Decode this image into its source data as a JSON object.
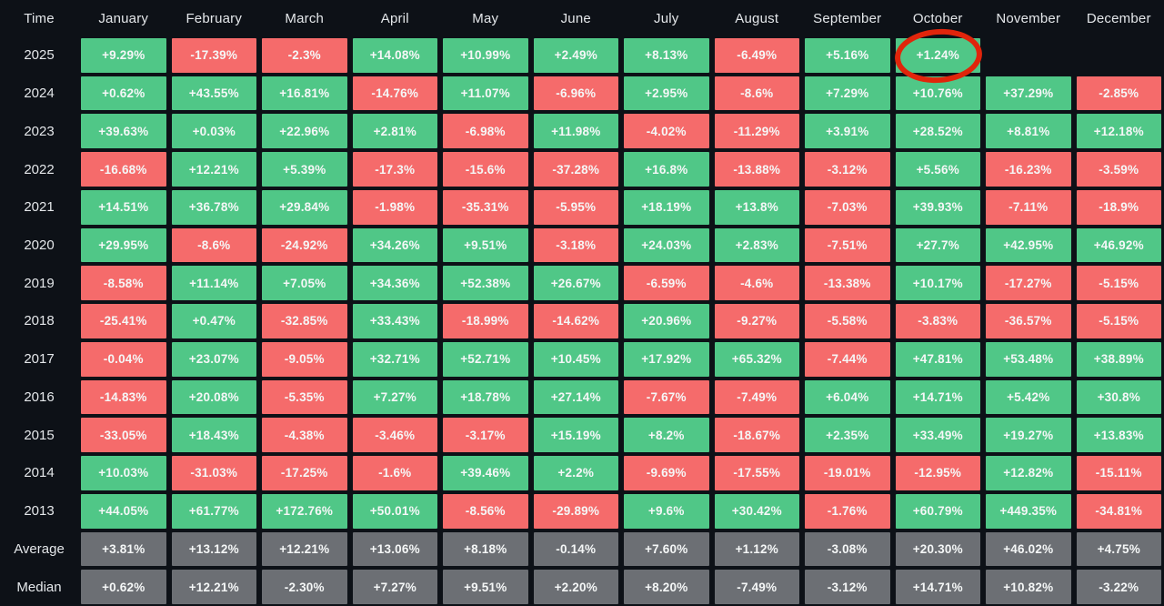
{
  "chart_data": {
    "type": "heatmap",
    "title": "Monthly returns heatmap by year",
    "legend_position": "none",
    "grid": false,
    "columns": [
      "Time",
      "January",
      "February",
      "March",
      "April",
      "May",
      "June",
      "July",
      "August",
      "September",
      "October",
      "November",
      "December"
    ],
    "rows": [
      {
        "label": "2025",
        "kind": "year",
        "values": [
          "+9.29%",
          "-17.39%",
          "-2.3%",
          "+14.08%",
          "+10.99%",
          "+2.49%",
          "+8.13%",
          "-6.49%",
          "+5.16%",
          "+1.24%",
          null,
          null
        ]
      },
      {
        "label": "2024",
        "kind": "year",
        "values": [
          "+0.62%",
          "+43.55%",
          "+16.81%",
          "-14.76%",
          "+11.07%",
          "-6.96%",
          "+2.95%",
          "-8.6%",
          "+7.29%",
          "+10.76%",
          "+37.29%",
          "-2.85%"
        ]
      },
      {
        "label": "2023",
        "kind": "year",
        "values": [
          "+39.63%",
          "+0.03%",
          "+22.96%",
          "+2.81%",
          "-6.98%",
          "+11.98%",
          "-4.02%",
          "-11.29%",
          "+3.91%",
          "+28.52%",
          "+8.81%",
          "+12.18%"
        ]
      },
      {
        "label": "2022",
        "kind": "year",
        "values": [
          "-16.68%",
          "+12.21%",
          "+5.39%",
          "-17.3%",
          "-15.6%",
          "-37.28%",
          "+16.8%",
          "-13.88%",
          "-3.12%",
          "+5.56%",
          "-16.23%",
          "-3.59%"
        ]
      },
      {
        "label": "2021",
        "kind": "year",
        "values": [
          "+14.51%",
          "+36.78%",
          "+29.84%",
          "-1.98%",
          "-35.31%",
          "-5.95%",
          "+18.19%",
          "+13.8%",
          "-7.03%",
          "+39.93%",
          "-7.11%",
          "-18.9%"
        ]
      },
      {
        "label": "2020",
        "kind": "year",
        "values": [
          "+29.95%",
          "-8.6%",
          "-24.92%",
          "+34.26%",
          "+9.51%",
          "-3.18%",
          "+24.03%",
          "+2.83%",
          "-7.51%",
          "+27.7%",
          "+42.95%",
          "+46.92%"
        ]
      },
      {
        "label": "2019",
        "kind": "year",
        "values": [
          "-8.58%",
          "+11.14%",
          "+7.05%",
          "+34.36%",
          "+52.38%",
          "+26.67%",
          "-6.59%",
          "-4.6%",
          "-13.38%",
          "+10.17%",
          "-17.27%",
          "-5.15%"
        ]
      },
      {
        "label": "2018",
        "kind": "year",
        "values": [
          "-25.41%",
          "+0.47%",
          "-32.85%",
          "+33.43%",
          "-18.99%",
          "-14.62%",
          "+20.96%",
          "-9.27%",
          "-5.58%",
          "-3.83%",
          "-36.57%",
          "-5.15%"
        ]
      },
      {
        "label": "2017",
        "kind": "year",
        "values": [
          "-0.04%",
          "+23.07%",
          "-9.05%",
          "+32.71%",
          "+52.71%",
          "+10.45%",
          "+17.92%",
          "+65.32%",
          "-7.44%",
          "+47.81%",
          "+53.48%",
          "+38.89%"
        ]
      },
      {
        "label": "2016",
        "kind": "year",
        "values": [
          "-14.83%",
          "+20.08%",
          "-5.35%",
          "+7.27%",
          "+18.78%",
          "+27.14%",
          "-7.67%",
          "-7.49%",
          "+6.04%",
          "+14.71%",
          "+5.42%",
          "+30.8%"
        ]
      },
      {
        "label": "2015",
        "kind": "year",
        "values": [
          "-33.05%",
          "+18.43%",
          "-4.38%",
          "-3.46%",
          "-3.17%",
          "+15.19%",
          "+8.2%",
          "-18.67%",
          "+2.35%",
          "+33.49%",
          "+19.27%",
          "+13.83%"
        ]
      },
      {
        "label": "2014",
        "kind": "year",
        "values": [
          "+10.03%",
          "-31.03%",
          "-17.25%",
          "-1.6%",
          "+39.46%",
          "+2.2%",
          "-9.69%",
          "-17.55%",
          "-19.01%",
          "-12.95%",
          "+12.82%",
          "-15.11%"
        ]
      },
      {
        "label": "2013",
        "kind": "year",
        "values": [
          "+44.05%",
          "+61.77%",
          "+172.76%",
          "+50.01%",
          "-8.56%",
          "-29.89%",
          "+9.6%",
          "+30.42%",
          "-1.76%",
          "+60.79%",
          "+449.35%",
          "-34.81%"
        ]
      },
      {
        "label": "Average",
        "kind": "summary",
        "values": [
          "+3.81%",
          "+13.12%",
          "+12.21%",
          "+13.06%",
          "+8.18%",
          "-0.14%",
          "+7.60%",
          "+1.12%",
          "-3.08%",
          "+20.30%",
          "+46.02%",
          "+4.75%"
        ]
      },
      {
        "label": "Median",
        "kind": "summary",
        "values": [
          "+0.62%",
          "+12.21%",
          "-2.30%",
          "+7.27%",
          "+9.51%",
          "+2.20%",
          "+8.20%",
          "-7.49%",
          "-3.12%",
          "+14.71%",
          "+10.82%",
          "-3.22%"
        ]
      }
    ],
    "annotation": {
      "type": "circle",
      "target_row": "2025",
      "target_column": "October",
      "target_value": "+1.24%",
      "color": "#e1250b"
    },
    "colors": {
      "positive": "#50c787",
      "negative": "#f56b6b",
      "summary": "#6c6f74",
      "background": "#0d1117",
      "header_text": "#e4e7ea",
      "cell_text": "#f5f7f7"
    }
  }
}
